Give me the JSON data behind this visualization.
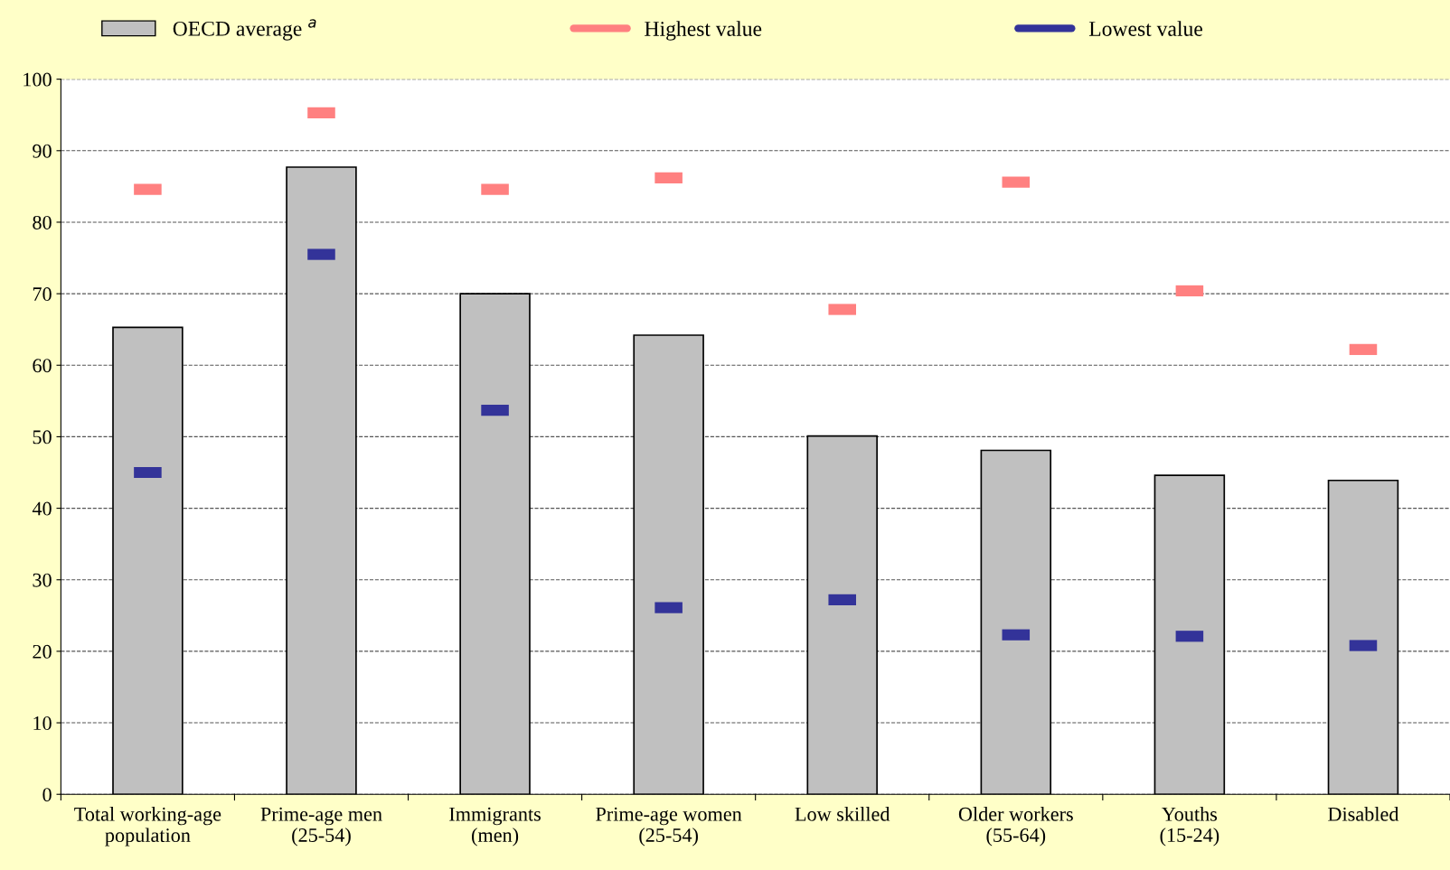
{
  "chart_data": {
    "type": "bar",
    "categories": [
      "Total working-age\npopulation",
      "Prime-age men\n(25-54)",
      "Immigrants\n(men)",
      "Prime-age women\n(25-54)",
      "Low skilled",
      "Older workers\n(55-64)",
      "Youths\n(15-24)",
      "Disabled"
    ],
    "series": [
      {
        "name": "OECD average $^{a}$",
        "type": "bar",
        "color": "#c0c0c0",
        "values": [
          65.3,
          87.7,
          70.0,
          64.2,
          50.1,
          48.1,
          44.6,
          43.9
        ]
      },
      {
        "name": "Highest value",
        "type": "scatter",
        "color": "#ff8080",
        "x": [
          "Total working-age\npopulation",
          "Prime-age men\n(25-54)",
          "Immigrants\n(men)",
          "Prime-age women\n(25-54)",
          "Low skilled",
          "Older workers\n(55-64)",
          "Youths\n(15-24)",
          "Disabled"
        ],
        "values": [
          84.6,
          95.3,
          84.6,
          86.2,
          67.8,
          85.6,
          70.4,
          62.2
        ]
      },
      {
        "name": "Lowest value",
        "type": "scatter",
        "color": "#333399",
        "x": [
          "Total working-age\npopulation",
          "Prime-age men\n(25-54)",
          "Immigrants\n(men)",
          "Prime-age women\n(25-54)",
          "Low skilled",
          "Older workers\n(55-64)",
          "Youths\n(15-24)",
          "Disabled"
        ],
        "values": [
          45.0,
          75.5,
          53.7,
          26.1,
          27.2,
          22.3,
          22.1,
          20.8
        ]
      }
    ],
    "ylim": [
      0,
      100
    ],
    "yticks": [
      0,
      10,
      20,
      30,
      40,
      50,
      60,
      70,
      80,
      90,
      100
    ],
    "grid": "y",
    "legend": "top"
  }
}
